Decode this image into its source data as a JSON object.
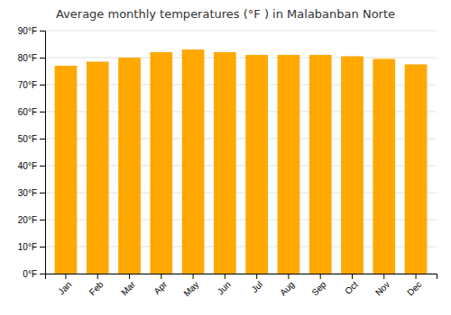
{
  "chart_data": {
    "type": "bar",
    "title": "Average monthly temperatures (°F ) in Malabanban Norte",
    "categories": [
      "Jan",
      "Feb",
      "Mar",
      "Apr",
      "May",
      "Jun",
      "Jul",
      "Aug",
      "Sep",
      "Oct",
      "Nov",
      "Dec"
    ],
    "values": [
      77.0,
      78.5,
      80.0,
      82.0,
      83.0,
      82.0,
      81.0,
      81.0,
      81.0,
      80.5,
      79.5,
      77.5
    ],
    "color": "#FFA800",
    "ylim": [
      0,
      90
    ],
    "yticks": [
      {
        "value": 0,
        "label": "0°F"
      },
      {
        "value": 10,
        "label": "10°F"
      },
      {
        "value": 20,
        "label": "20°F"
      },
      {
        "value": 30,
        "label": "30°F"
      },
      {
        "value": 40,
        "label": "40°F"
      },
      {
        "value": 50,
        "label": "50°F"
      },
      {
        "value": 60,
        "label": "60°F"
      },
      {
        "value": 70,
        "label": "70°F"
      },
      {
        "value": 80,
        "label": "80°F"
      },
      {
        "value": 90,
        "label": "90°F"
      }
    ],
    "grid": true
  }
}
